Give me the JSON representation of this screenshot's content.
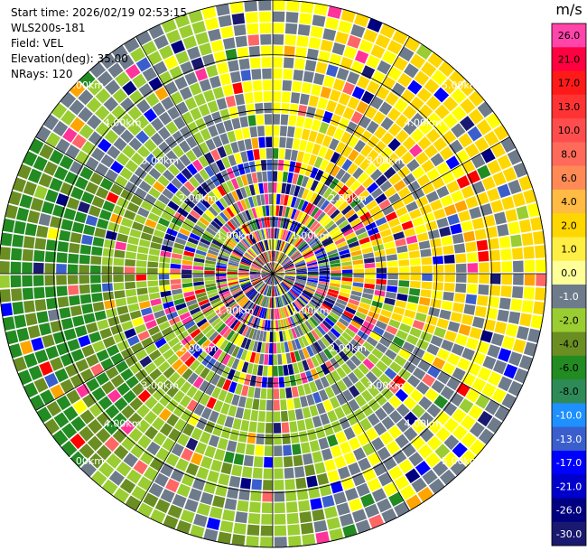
{
  "info": {
    "start_time": "Start time: 2026/02/19 02:53:15",
    "instrument": "WLS200s-181",
    "field": "Field: VEL",
    "elevation": "Elevation(deg): 35.00",
    "nrays": "NRays: 120"
  },
  "chart_data": {
    "type": "heatmap",
    "projection": "polar-ppi",
    "field": "VEL",
    "units": "m/s",
    "range_ring_labels": [
      "1.00km",
      "2.00km",
      "3.00km",
      "4.00km",
      "5.00km"
    ],
    "range_rings_km": [
      1,
      2,
      3,
      4,
      5
    ],
    "max_range_km": 5.0,
    "n_rays": 120,
    "grid": true,
    "colorbar": {
      "title": "m/s",
      "ticks": [
        "26.0",
        "21.0",
        "17.0",
        "13.0",
        "10.0",
        "8.0",
        "6.0",
        "4.0",
        "2.0",
        "1.0",
        "0.0",
        "-1.0",
        "-2.0",
        "-4.0",
        "-6.0",
        "-8.0",
        "-10.0",
        "-13.0",
        "-17.0",
        "-21.0",
        "-26.0",
        "-30.0"
      ],
      "colors": [
        "#ff44aa",
        "#ff0040",
        "#ff1a1a",
        "#ff3333",
        "#ff4d4d",
        "#ff6a5a",
        "#ff8a55",
        "#ffbb44",
        "#ffd700",
        "#ffee44",
        "#ffff99",
        "#6e7b8b",
        "#9acd32",
        "#6b8e23",
        "#228b22",
        "#2e8b57",
        "#1e90ff",
        "#3a5fcd",
        "#0000ff",
        "#0000cd",
        "#000080",
        "#191970"
      ]
    }
  }
}
